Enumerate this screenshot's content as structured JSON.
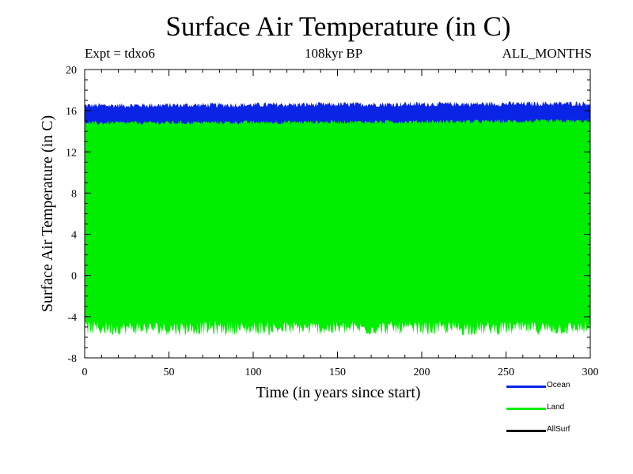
{
  "chart_data": {
    "type": "area",
    "title": "Surface Air Temperature (in C)",
    "subtitle_left": "Expt = tdxo6",
    "subtitle_center": "108kyr BP",
    "subtitle_right": "ALL_MONTHS",
    "xlabel": "Time (in years since start)",
    "ylabel": "Surface Air Temperature (in C)",
    "xlim": [
      0,
      300
    ],
    "ylim": [
      -8,
      20
    ],
    "xticks": [
      "0",
      "50",
      "100",
      "150",
      "200",
      "250",
      "300"
    ],
    "yticks": [
      "-8",
      "-4",
      "0",
      "4",
      "8",
      "12",
      "16",
      "20"
    ],
    "series": [
      {
        "name": "Ocean",
        "color": "#0a24e6",
        "min_approx": 14.6,
        "max_approx": 16.5,
        "trend_end_max": 16.7
      },
      {
        "name": "Land",
        "color": "#00ee00",
        "min_approx": -5.0,
        "max_approx": 14.8,
        "trend_end_max": 15.0
      },
      {
        "name": "AllSurf",
        "color": "#000000"
      }
    ]
  }
}
